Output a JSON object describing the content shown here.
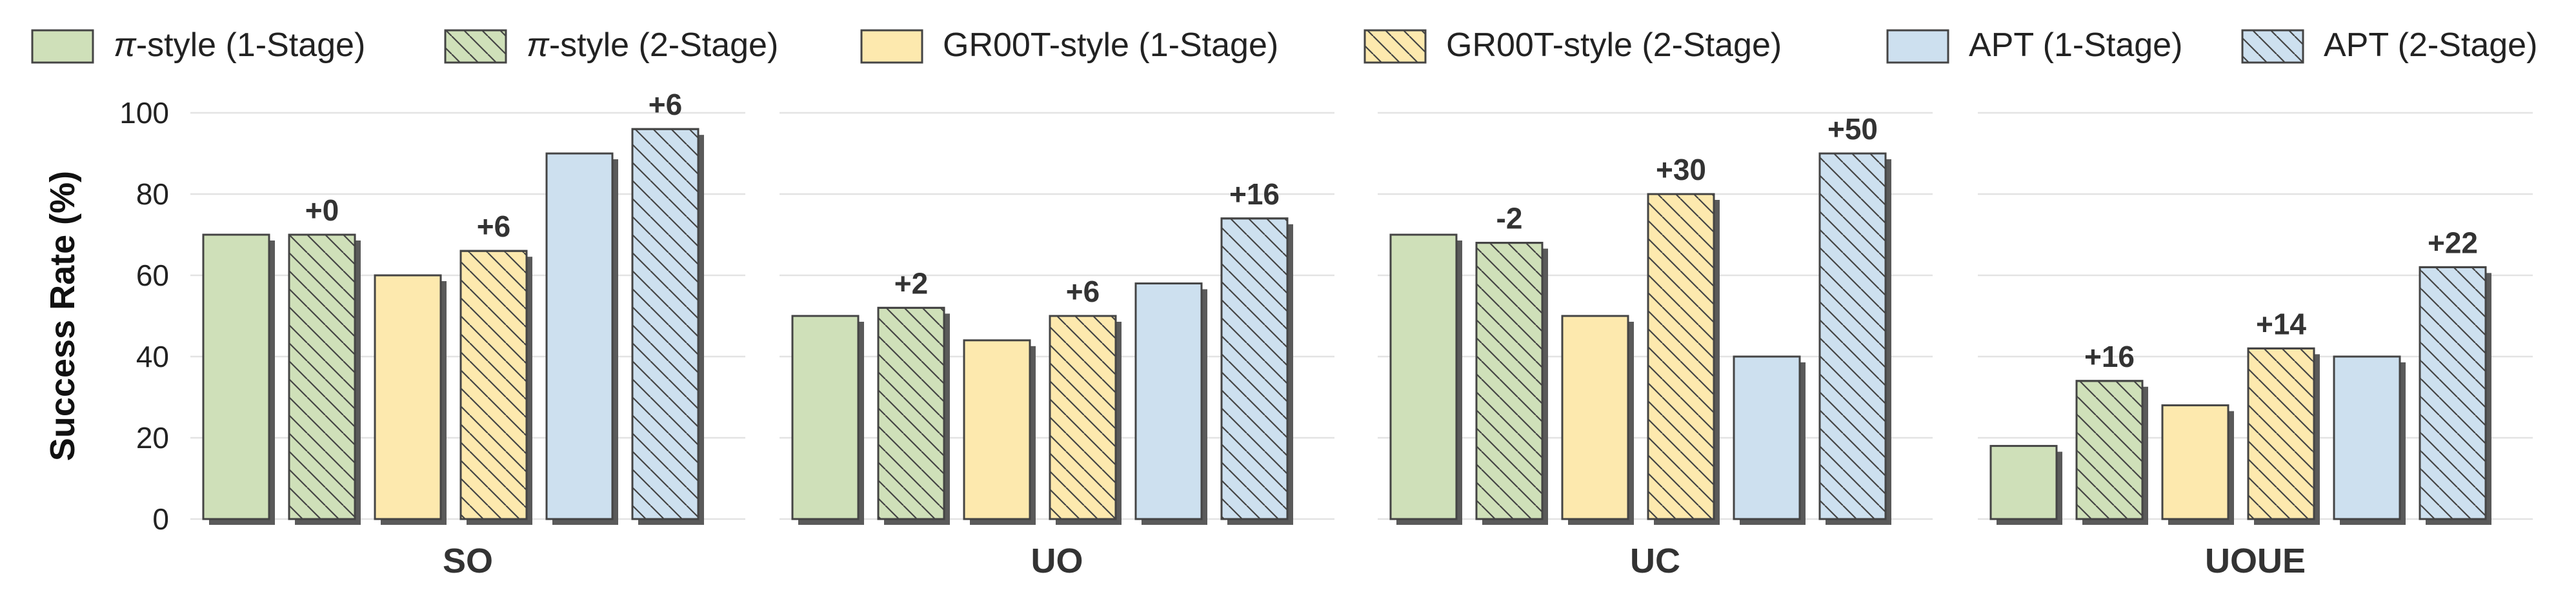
{
  "chart_data": {
    "type": "bar",
    "title": "",
    "xlabel": "",
    "ylabel": "Success Rate (%)",
    "ylim": [
      0,
      100
    ],
    "yticks": [
      0,
      20,
      40,
      60,
      80,
      100
    ],
    "grid": true,
    "legend_position": "top",
    "categories": [
      "SO",
      "UO",
      "UC",
      "UOUE"
    ],
    "series": [
      {
        "name": "π-style (1-Stage)",
        "color": "#cfe0b9",
        "hatch": false,
        "values": [
          70,
          50,
          70,
          18
        ]
      },
      {
        "name": "π-style (2-Stage)",
        "color": "#cfe0b9",
        "hatch": true,
        "values": [
          70,
          52,
          68,
          34
        ]
      },
      {
        "name": "GR00T-style (1-Stage)",
        "color": "#fde9ae",
        "hatch": false,
        "values": [
          60,
          44,
          50,
          28
        ]
      },
      {
        "name": "GR00T-style (2-Stage)",
        "color": "#fde9ae",
        "hatch": true,
        "values": [
          66,
          50,
          80,
          42
        ]
      },
      {
        "name": "APT (1-Stage)",
        "color": "#cde0ef",
        "hatch": false,
        "values": [
          90,
          58,
          40,
          40
        ]
      },
      {
        "name": "APT (2-Stage)",
        "color": "#cde0ef",
        "hatch": true,
        "values": [
          96,
          74,
          90,
          62
        ]
      }
    ],
    "deltas": [
      [
        "+0",
        "+6",
        "+6"
      ],
      [
        "+2",
        "+6",
        "+16"
      ],
      [
        "-2",
        "+30",
        "+50"
      ],
      [
        "+16",
        "+14",
        "+22"
      ]
    ]
  }
}
